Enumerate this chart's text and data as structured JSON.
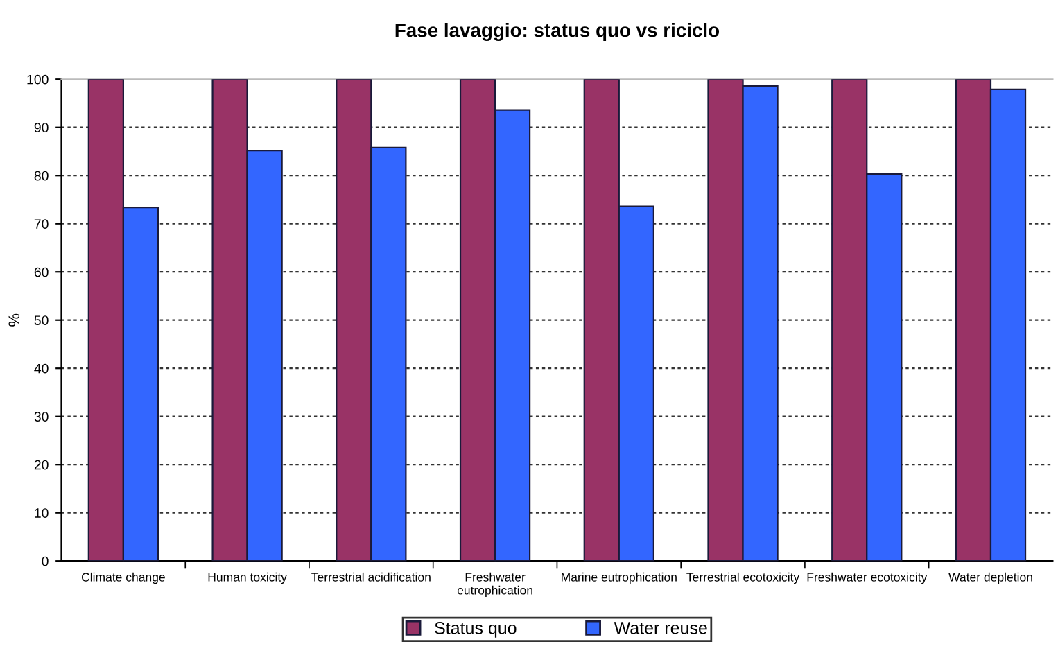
{
  "chart_data": {
    "type": "bar",
    "title": "Fase lavaggio: status quo vs riciclo",
    "ylabel": "%",
    "categories": [
      "Climate change",
      "Human toxicity",
      "Terrestrial acidification",
      "Freshwater\neutrophication",
      "Marine eutrophication",
      "Terrestrial ecotoxicity",
      "Freshwater ecotoxicity",
      "Water depletion"
    ],
    "series": [
      {
        "name": "Status quo",
        "color": "#993366",
        "values": [
          100,
          100,
          100,
          100,
          100,
          100,
          100,
          100
        ]
      },
      {
        "name": "Water reuse",
        "color": "#3366ff",
        "values": [
          73.4,
          85.2,
          85.8,
          93.6,
          73.6,
          98.6,
          80.3,
          97.9
        ]
      }
    ],
    "ylim": [
      0,
      100
    ],
    "yticks": [
      0,
      10,
      20,
      30,
      40,
      50,
      60,
      70,
      80,
      90,
      100
    ],
    "grid": "y",
    "legend": "bottom"
  }
}
